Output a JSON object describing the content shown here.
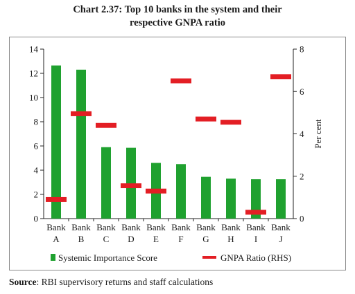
{
  "title": {
    "line1": "Chart 2.37: Top 10 banks in the system and their",
    "line2": "respective GNPA ratio"
  },
  "source": {
    "label": "Source",
    "text": ": RBI supervisory returns and staff calculations"
  },
  "colors": {
    "bar": "#1fa12f",
    "marker": "#e31e24",
    "axis": "#222222",
    "frame": "#888888"
  },
  "chart_data": {
    "type": "bar",
    "categories": [
      [
        "Bank",
        "A"
      ],
      [
        "Bank",
        "B"
      ],
      [
        "Bank",
        "C"
      ],
      [
        "Bank",
        "D"
      ],
      [
        "Bank",
        "E"
      ],
      [
        "Bank",
        "F"
      ],
      [
        "Bank",
        "G"
      ],
      [
        "Bank",
        "H"
      ],
      [
        "Bank",
        "I"
      ],
      [
        "Bank",
        "J"
      ]
    ],
    "series": [
      {
        "name": "Systemic Importance Score",
        "type": "bar",
        "axis": "left",
        "values": [
          12.65,
          12.3,
          5.9,
          5.85,
          4.6,
          4.5,
          3.45,
          3.3,
          3.25,
          3.25
        ]
      },
      {
        "name": "GNPA Ratio (RHS)",
        "type": "marker",
        "axis": "right",
        "values": [
          0.9,
          4.95,
          4.4,
          1.55,
          1.3,
          6.5,
          4.7,
          4.55,
          0.3,
          6.7
        ]
      }
    ],
    "y_left": {
      "min": 0,
      "max": 14,
      "ticks": [
        0,
        2,
        4,
        6,
        8,
        10,
        12,
        14
      ]
    },
    "y_right": {
      "min": 0,
      "max": 8,
      "ticks": [
        0,
        2,
        4,
        6,
        8
      ],
      "label": "Per cent"
    },
    "legend_position": "bottom",
    "grid": false
  }
}
